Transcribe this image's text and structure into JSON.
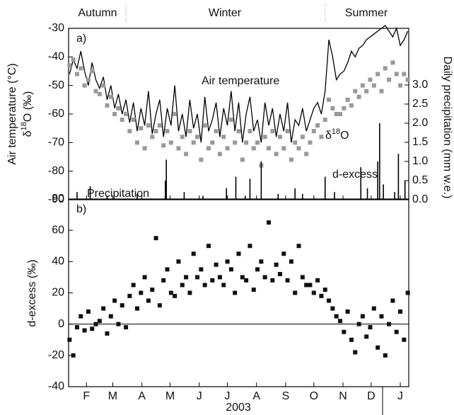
{
  "chart_data": [
    {
      "type": "line",
      "panel_label": "a)",
      "y_label": "Air temperature (°C)",
      "y_label_2": "δ18O (‰)",
      "y2_label": "Daily precipitation (mm w.e.)",
      "seasons": [
        "Autumn",
        "Winter",
        "Summer"
      ],
      "xlim": [
        27,
        389
      ],
      "ylim": [
        -90,
        -30
      ],
      "yticks": [
        -30,
        -40,
        -50,
        -60,
        -70,
        -80,
        -90
      ],
      "y2lim": [
        0,
        4.48
      ],
      "y2ticks": [
        {
          "value": 0,
          "label": "0.0"
        },
        {
          "value": 0.5,
          "label": "0.5"
        },
        {
          "value": 1,
          "label": "1.0"
        },
        {
          "value": 1.5,
          "label": "1.5"
        },
        {
          "value": 2,
          "label": "2.0"
        },
        {
          "value": 2.5,
          "label": "2.5"
        },
        {
          "value": 3,
          "label": "3.0"
        }
      ],
      "series": [
        {
          "name": "Air temperature",
          "type": "line",
          "color": "#000000",
          "x": [
            28,
            32,
            36,
            40,
            44,
            48,
            52,
            56,
            60,
            64,
            68,
            72,
            76,
            80,
            84,
            88,
            92,
            96,
            100,
            104,
            108,
            112,
            116,
            120,
            124,
            128,
            132,
            136,
            140,
            144,
            148,
            152,
            156,
            160,
            164,
            168,
            172,
            176,
            180,
            184,
            188,
            192,
            196,
            200,
            204,
            208,
            212,
            216,
            220,
            224,
            228,
            232,
            236,
            240,
            244,
            248,
            252,
            256,
            260,
            264,
            268,
            272,
            276,
            280,
            284,
            288,
            292,
            296,
            300,
            304,
            308,
            312,
            316,
            320,
            324,
            328,
            332,
            336,
            340,
            344,
            348,
            352,
            356,
            360,
            364,
            368,
            372,
            376,
            380,
            384,
            388
          ],
          "values": [
            -46,
            -41,
            -44,
            -38,
            -45,
            -50,
            -42,
            -48,
            -51,
            -47,
            -55,
            -50,
            -58,
            -53,
            -60,
            -55,
            -63,
            -56,
            -66,
            -58,
            -64,
            -52,
            -67,
            -60,
            -55,
            -68,
            -58,
            -64,
            -50,
            -66,
            -60,
            -68,
            -55,
            -65,
            -60,
            -70,
            -54,
            -66,
            -62,
            -56,
            -68,
            -58,
            -64,
            -52,
            -66,
            -56,
            -70,
            -60,
            -54,
            -66,
            -62,
            -70,
            -56,
            -64,
            -58,
            -68,
            -60,
            -66,
            -56,
            -70,
            -62,
            -64,
            -58,
            -66,
            -62,
            -58,
            -56,
            -60,
            -52,
            -34,
            -40,
            -48,
            -46,
            -45,
            -42,
            -38,
            -40,
            -37,
            -36,
            -34,
            -33,
            -32,
            -31,
            -30,
            -29,
            -31,
            -33,
            -30,
            -36,
            -34,
            -31
          ]
        },
        {
          "name": "δ18O",
          "type": "scatter",
          "color": "#999999",
          "x": [
            28,
            32,
            36,
            40,
            44,
            48,
            52,
            56,
            60,
            64,
            68,
            72,
            76,
            80,
            84,
            88,
            92,
            96,
            100,
            104,
            108,
            112,
            116,
            120,
            124,
            128,
            132,
            136,
            140,
            144,
            148,
            152,
            156,
            160,
            164,
            168,
            172,
            176,
            180,
            184,
            188,
            192,
            196,
            200,
            204,
            208,
            212,
            216,
            220,
            224,
            228,
            232,
            236,
            240,
            244,
            248,
            252,
            256,
            260,
            264,
            268,
            272,
            276,
            280,
            284,
            288,
            292,
            296,
            300,
            304,
            308,
            312,
            316,
            320,
            324,
            328,
            332,
            336,
            340,
            344,
            348,
            352,
            356,
            360,
            364,
            368,
            372,
            376,
            380,
            384,
            388
          ],
          "values": [
            -43,
            -41,
            -46,
            -44,
            -50,
            -48,
            -45,
            -52,
            -53,
            -50,
            -57,
            -54,
            -60,
            -58,
            -62,
            -60,
            -66,
            -62,
            -70,
            -65,
            -72,
            -64,
            -68,
            -66,
            -64,
            -71,
            -66,
            -70,
            -60,
            -72,
            -68,
            -74,
            -66,
            -70,
            -68,
            -76,
            -64,
            -72,
            -70,
            -66,
            -74,
            -68,
            -72,
            -62,
            -70,
            -66,
            -76,
            -70,
            -66,
            -72,
            -70,
            -78,
            -68,
            -72,
            -66,
            -74,
            -68,
            -72,
            -66,
            -76,
            -70,
            -72,
            -68,
            -74,
            -70,
            -66,
            -64,
            -68,
            -62,
            -55,
            -58,
            -60,
            -60,
            -58,
            -55,
            -57,
            -52,
            -54,
            -50,
            -52,
            -48,
            -50,
            -46,
            -52,
            -44,
            -48,
            -42,
            -46,
            -50,
            -46,
            -48
          ]
        },
        {
          "name": "Precipitation",
          "type": "bar",
          "axis": "y2",
          "color": "#000000",
          "x": [
            36,
            50,
            68,
            100,
            130,
            131,
            150,
            170,
            195,
            205,
            215,
            220,
            232,
            250,
            268,
            276,
            300,
            310,
            338,
            345,
            356,
            358,
            362,
            374,
            378,
            385
          ],
          "values": [
            0.2,
            0.35,
            0.1,
            0.15,
            0.5,
            1.05,
            0.2,
            0.1,
            0.3,
            0.6,
            0.1,
            0.55,
            1.0,
            0.15,
            0.3,
            0.15,
            0.6,
            0.2,
            0.85,
            0.3,
            1.0,
            2.0,
            0.4,
            0.2,
            1.2,
            0.5
          ]
        }
      ]
    },
    {
      "type": "scatter",
      "panel_label": "b)",
      "y_label": "d-excess (‰)",
      "x_label": "2003",
      "xlim": [
        27,
        389
      ],
      "xticks": [
        {
          "value": 46,
          "label": "F"
        },
        {
          "value": 74,
          "label": "M"
        },
        {
          "value": 105,
          "label": "A"
        },
        {
          "value": 135,
          "label": "M"
        },
        {
          "value": 166,
          "label": "J"
        },
        {
          "value": 196,
          "label": "J"
        },
        {
          "value": 227,
          "label": "A"
        },
        {
          "value": 258,
          "label": "S"
        },
        {
          "value": 288,
          "label": "O"
        },
        {
          "value": 319,
          "label": "N"
        },
        {
          "value": 349,
          "label": "D"
        },
        {
          "value": 380,
          "label": "J"
        }
      ],
      "ylim": [
        -40,
        80
      ],
      "yticks": [
        80,
        60,
        40,
        20,
        0,
        -20,
        -40
      ],
      "series": [
        {
          "name": "d-excess",
          "type": "scatter",
          "color": "#111111",
          "x": [
            28,
            32,
            36,
            40,
            44,
            48,
            52,
            56,
            60,
            64,
            68,
            72,
            76,
            80,
            84,
            88,
            92,
            96,
            100,
            104,
            108,
            112,
            116,
            120,
            124,
            128,
            132,
            136,
            140,
            144,
            148,
            152,
            156,
            160,
            164,
            168,
            172,
            176,
            180,
            184,
            188,
            192,
            196,
            200,
            204,
            208,
            212,
            216,
            220,
            224,
            228,
            232,
            236,
            240,
            244,
            248,
            252,
            256,
            260,
            264,
            268,
            272,
            276,
            280,
            284,
            288,
            292,
            296,
            300,
            304,
            308,
            312,
            316,
            320,
            324,
            328,
            332,
            336,
            340,
            344,
            348,
            352,
            356,
            360,
            364,
            368,
            372,
            376,
            380,
            384,
            388
          ],
          "values": [
            -10,
            -20,
            -2,
            5,
            -4,
            8,
            -3,
            0,
            2,
            10,
            -6,
            5,
            15,
            0,
            12,
            -2,
            18,
            25,
            10,
            20,
            30,
            15,
            22,
            55,
            12,
            28,
            35,
            20,
            18,
            40,
            25,
            30,
            20,
            45,
            30,
            35,
            25,
            50,
            28,
            38,
            30,
            25,
            40,
            35,
            20,
            45,
            30,
            28,
            50,
            22,
            35,
            40,
            30,
            65,
            28,
            38,
            32,
            45,
            28,
            40,
            20,
            50,
            30,
            25,
            25,
            20,
            28,
            18,
            22,
            15,
            10,
            5,
            2,
            -5,
            8,
            -10,
            -18,
            0,
            5,
            -8,
            -2,
            10,
            -15,
            5,
            -20,
            0,
            15,
            -5,
            8,
            -10,
            20
          ]
        }
      ]
    }
  ]
}
